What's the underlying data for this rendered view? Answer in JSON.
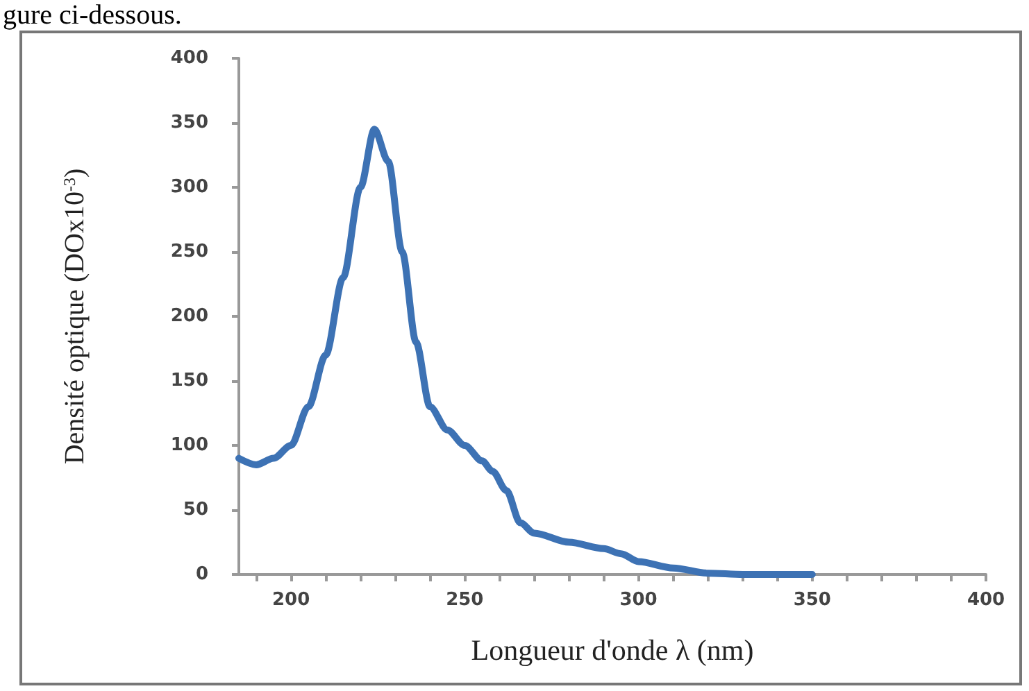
{
  "chart_data": {
    "type": "line",
    "xlabel": "Longueur d'onde λ (nm)",
    "ylabel": "Densité optique (DOx10$^{-3}$)",
    "annotations": [
      "gure ci-dessous."
    ],
    "x": [
      185,
      190,
      195,
      200,
      205,
      210,
      215,
      220,
      224,
      228,
      232,
      236,
      240,
      245,
      250,
      255,
      258,
      262,
      266,
      270,
      280,
      290,
      295,
      300,
      310,
      320,
      330,
      340,
      350
    ],
    "series": [
      {
        "color": "#3d72b4",
        "values": [
          90,
          85,
          90,
          100,
          130,
          170,
          230,
          300,
          345,
          320,
          250,
          180,
          130,
          112,
          100,
          88,
          80,
          65,
          40,
          32,
          25,
          20,
          16,
          10,
          5,
          1,
          0,
          0,
          0
        ]
      }
    ],
    "xlim": [
      185,
      400
    ],
    "xticks": [
      {
        "value": 190,
        "label": null
      },
      200,
      {
        "value": 210,
        "label": null
      },
      {
        "value": 220,
        "label": null
      },
      {
        "value": 230,
        "label": null
      },
      {
        "value": 240,
        "label": null
      },
      250,
      {
        "value": 260,
        "label": null
      },
      {
        "value": 270,
        "label": null
      },
      {
        "value": 280,
        "label": null
      },
      {
        "value": 290,
        "label": null
      },
      300,
      {
        "value": 310,
        "label": null
      },
      {
        "value": 320,
        "label": null
      },
      {
        "value": 330,
        "label": null
      },
      {
        "value": 340,
        "label": null
      },
      350,
      {
        "value": 360,
        "label": null
      },
      {
        "value": 370,
        "label": null
      },
      {
        "value": 380,
        "label": null
      },
      {
        "value": 390,
        "label": null
      },
      400
    ],
    "ylim": [
      0,
      400
    ],
    "yticks": [
      0,
      50,
      100,
      150,
      200,
      250,
      300,
      350,
      400
    ],
    "grid": false,
    "marker": "none",
    "line_style": "solid"
  }
}
